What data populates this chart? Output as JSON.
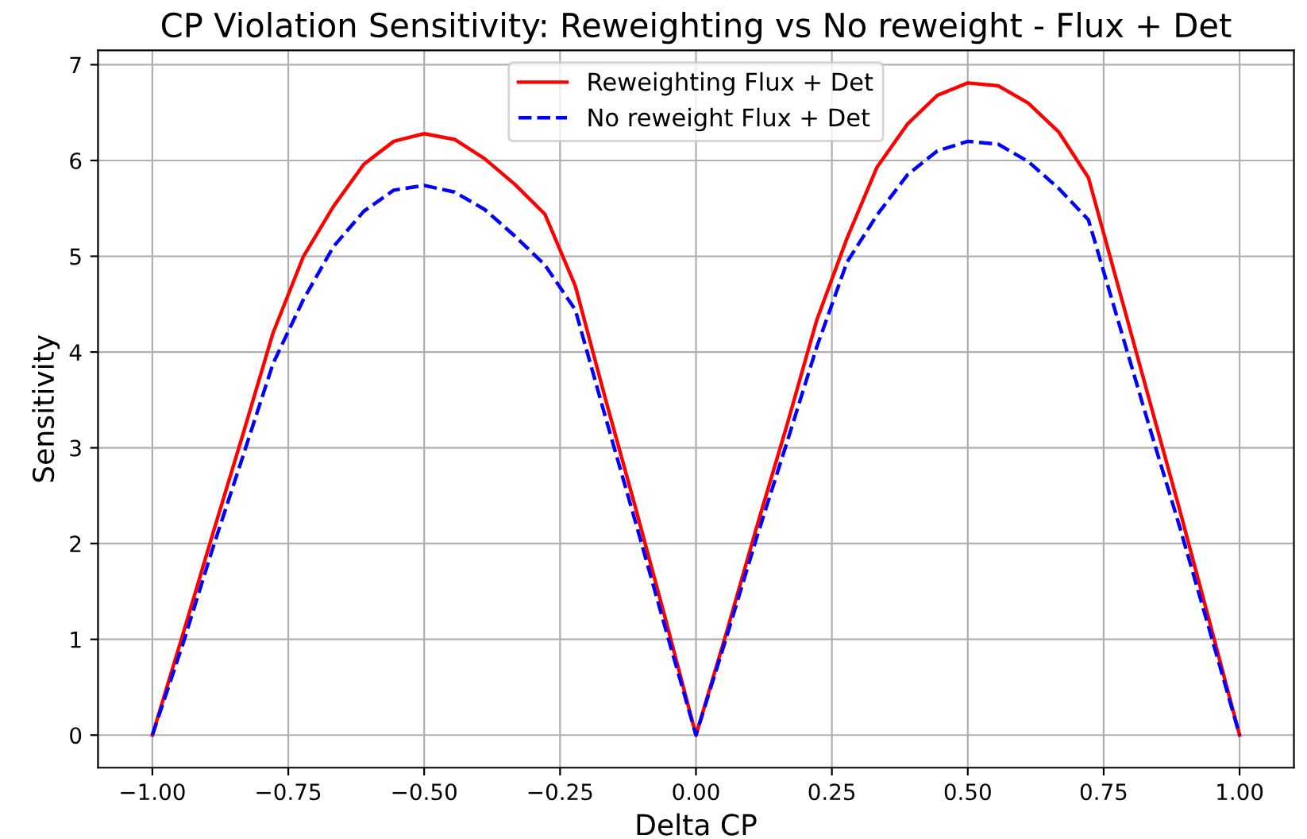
{
  "chart_data": {
    "type": "line",
    "title": "CP Violation Sensitivity: Reweighting vs No reweight - Flux + Det",
    "xlabel": "Delta CP",
    "ylabel": "Sensitivity",
    "x": [
      -1,
      -0.944,
      -0.889,
      -0.833,
      -0.778,
      -0.722,
      -0.667,
      -0.611,
      -0.556,
      -0.5,
      -0.444,
      -0.389,
      -0.333,
      -0.278,
      -0.222,
      -0.167,
      -0.111,
      -0.056,
      0,
      0.056,
      0.111,
      0.167,
      0.222,
      0.278,
      0.333,
      0.389,
      0.444,
      0.5,
      0.556,
      0.611,
      0.667,
      0.722,
      0.778,
      0.833,
      0.889,
      0.944,
      1
    ],
    "series": [
      {
        "name": "Reweighting Flux + Det",
        "color": "#ff0000",
        "line_style": "solid",
        "values": [
          0,
          1.05,
          2.1,
          3.15,
          4.2,
          5.0,
          5.52,
          5.96,
          6.2,
          6.28,
          6.22,
          6.02,
          5.75,
          5.44,
          4.69,
          3.52,
          2.37,
          1.21,
          0,
          1.07,
          2.16,
          3.23,
          4.33,
          5.19,
          5.93,
          6.38,
          6.68,
          6.81,
          6.78,
          6.6,
          6.3,
          5.82,
          4.66,
          3.52,
          2.37,
          1.2,
          0
        ]
      },
      {
        "name": "No reweight Flux + Det",
        "color": "#0000ff",
        "line_style": "dashed",
        "values": [
          0,
          0.95,
          1.95,
          2.92,
          3.88,
          4.55,
          5.1,
          5.47,
          5.69,
          5.74,
          5.67,
          5.49,
          5.21,
          4.91,
          4.44,
          3.33,
          2.22,
          1.11,
          0,
          1.02,
          2.05,
          3.05,
          4.05,
          4.94,
          5.43,
          5.85,
          6.1,
          6.2,
          6.17,
          5.99,
          5.71,
          5.38,
          4.3,
          3.24,
          2.19,
          1.11,
          0
        ]
      }
    ],
    "xlim": [
      -1.1,
      1.1
    ],
    "ylim": [
      -0.34,
      7.15
    ],
    "xticks": [
      {
        "value": -1,
        "label": "−1.00"
      },
      {
        "value": -0.75,
        "label": "−0.75"
      },
      {
        "value": -0.5,
        "label": "−0.50"
      },
      {
        "value": -0.25,
        "label": "−0.25"
      },
      {
        "value": 0,
        "label": "0.00"
      },
      {
        "value": 0.25,
        "label": "0.25"
      },
      {
        "value": 0.5,
        "label": "0.50"
      },
      {
        "value": 0.75,
        "label": "0.75"
      },
      {
        "value": 1,
        "label": "1.00"
      }
    ],
    "yticks": [
      0,
      1,
      2,
      3,
      4,
      5,
      6,
      7
    ],
    "grid": true,
    "legend": "top",
    "marker": "none"
  }
}
